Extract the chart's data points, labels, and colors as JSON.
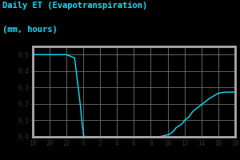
{
  "title_line1": "Daily ET (Evapotranspiration)",
  "title_line2": "(mm, hours)",
  "fig_bg": "#000000",
  "axes_bg": "#000000",
  "border_bg": "#aaaaaa",
  "line_color": "#00e5ff",
  "grid_color": "#555555",
  "tick_label_color": "#000000",
  "title_color": "#00e5ff",
  "ylim": [
    0.0,
    0.55
  ],
  "xtick_positions": [
    18,
    20,
    22,
    24,
    26,
    28,
    30,
    32,
    34,
    36,
    38,
    40,
    42
  ],
  "xtick_labels": [
    "18",
    "20",
    "22",
    "0",
    "2",
    "4",
    "6",
    "8",
    "10",
    "12",
    "14",
    "16",
    "18"
  ],
  "ytick_positions": [
    0.0,
    0.1,
    0.2,
    0.3,
    0.4,
    0.5
  ],
  "ytick_labels": [
    "0.0",
    "0.1",
    "0.2",
    "0.3",
    "0.4",
    "0.5"
  ],
  "x_pts": [
    18.0,
    22.0,
    23.0,
    23.3,
    23.5,
    23.7,
    23.85,
    23.92,
    24.0,
    24.05,
    24.2,
    25.0,
    27.0,
    29.0,
    31.0,
    33.0,
    34.2,
    34.5,
    34.8,
    35.0,
    35.3,
    35.6,
    35.9,
    36.0,
    36.5,
    37.0,
    37.5,
    38.0,
    38.5,
    39.0,
    39.5,
    40.0,
    40.5,
    41.0,
    41.5,
    42.0
  ],
  "y_pts": [
    0.5,
    0.5,
    0.48,
    0.35,
    0.27,
    0.18,
    0.1,
    0.06,
    0.04,
    0.01,
    0.0,
    0.0,
    0.0,
    0.0,
    0.0,
    0.0,
    0.015,
    0.025,
    0.04,
    0.055,
    0.065,
    0.075,
    0.09,
    0.1,
    0.12,
    0.155,
    0.175,
    0.195,
    0.215,
    0.235,
    0.25,
    0.265,
    0.27,
    0.272,
    0.272,
    0.272
  ]
}
